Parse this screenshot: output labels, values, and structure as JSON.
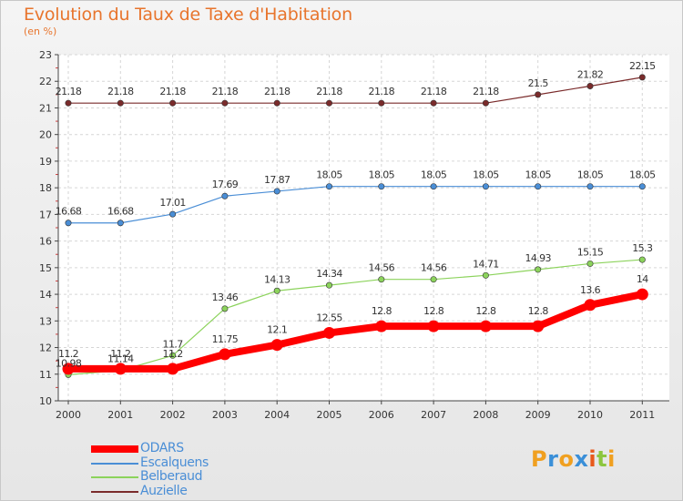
{
  "title": "Evolution du Taux de Taxe d'Habitation",
  "unit_label": "(en %)",
  "logo": {
    "letters": [
      "P",
      "r",
      "o",
      "x",
      "i",
      "t",
      "i"
    ],
    "colors": [
      "#f0a020",
      "#3a8fd8",
      "#f0a020",
      "#3a8fd8",
      "#e85a1c",
      "#8cc63f",
      "#f0a020"
    ]
  },
  "chart_data": {
    "type": "line",
    "x": [
      "2000",
      "2001",
      "2002",
      "2003",
      "2004",
      "2005",
      "2006",
      "2007",
      "2008",
      "2009",
      "2010",
      "2011"
    ],
    "ylim": [
      10,
      23
    ],
    "yticks": [
      "10",
      "11",
      "12",
      "13",
      "14",
      "15",
      "16",
      "17",
      "18",
      "19",
      "20",
      "21",
      "22",
      "23"
    ],
    "grid": true,
    "legend_position": "bottom-left",
    "series": [
      {
        "name": "ODARS",
        "color": "#ff0000",
        "values": [
          11.2,
          11.2,
          11.2,
          11.75,
          12.1,
          12.55,
          12.8,
          12.8,
          12.8,
          12.8,
          13.6,
          14
        ],
        "labels": [
          "11.2",
          "11.2",
          "11.2",
          "11.75",
          "12.1",
          "12.55",
          "12.8",
          "12.8",
          "12.8",
          "12.8",
          "13.6",
          "14"
        ]
      },
      {
        "name": "Escalquens",
        "color": "#4a8ed6",
        "values": [
          16.68,
          16.68,
          17.01,
          17.69,
          17.87,
          18.05,
          18.05,
          18.05,
          18.05,
          18.05,
          18.05,
          18.05
        ],
        "labels": [
          "16.68",
          "16.68",
          "17.01",
          "17.69",
          "17.87",
          "18.05",
          "18.05",
          "18.05",
          "18.05",
          "18.05",
          "18.05",
          "18.05"
        ]
      },
      {
        "name": "Belberaud",
        "color": "#8cd35c",
        "values": [
          10.98,
          11.14,
          11.7,
          13.46,
          14.13,
          14.34,
          14.56,
          14.56,
          14.71,
          14.93,
          15.15,
          15.3
        ],
        "labels": [
          "10.98",
          "11.14",
          "11.7",
          "13.46",
          "14.13",
          "14.34",
          "14.56",
          "14.56",
          "14.71",
          "14.93",
          "15.15",
          "15.3"
        ]
      },
      {
        "name": "Auzielle",
        "color": "#7a2b2b",
        "values": [
          21.18,
          21.18,
          21.18,
          21.18,
          21.18,
          21.18,
          21.18,
          21.18,
          21.18,
          21.5,
          21.82,
          22.15
        ],
        "labels": [
          "21.18",
          "21.18",
          "21.18",
          "21.18",
          "21.18",
          "21.18",
          "21.18",
          "21.18",
          "21.18",
          "21.5",
          "21.82",
          "22.15"
        ]
      }
    ]
  }
}
